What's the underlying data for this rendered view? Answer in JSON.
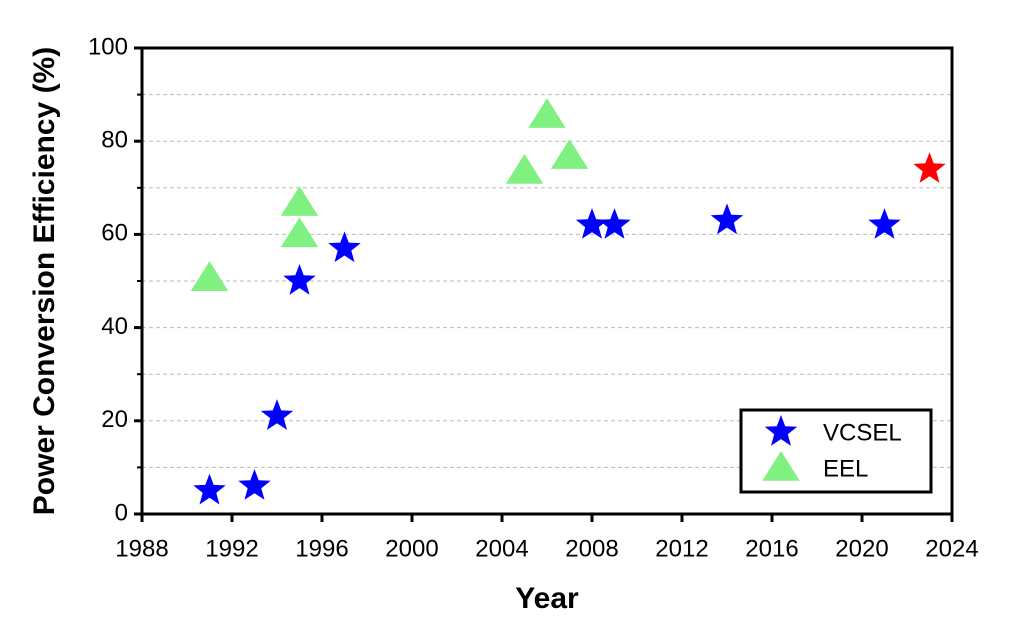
{
  "chart_data": {
    "type": "scatter",
    "xlabel": "Year",
    "ylabel": "Power Conversion Efficiency (%)",
    "xlim": [
      1988,
      2024
    ],
    "xticks": [
      1988,
      1992,
      1996,
      2000,
      2004,
      2008,
      2012,
      2016,
      2020,
      2024
    ],
    "ylim": [
      0,
      100
    ],
    "yticks": [
      0,
      20,
      40,
      60,
      80,
      100
    ],
    "minor_yticks": [
      10,
      30,
      50,
      70,
      90
    ],
    "grid": true,
    "legend": "lower right",
    "series": [
      {
        "name": "VCSEL",
        "color": "#0000ff",
        "marker": "star",
        "x": [
          1991,
          1993,
          1994,
          1995,
          1997,
          2008,
          2009,
          2014,
          2021
        ],
        "values": [
          5,
          6,
          21,
          50,
          57,
          62,
          62,
          63,
          62
        ]
      },
      {
        "name": "EEL",
        "color": "#80f080",
        "marker": "triangle",
        "x": [
          1991,
          1995,
          1995,
          2005,
          2006,
          2007
        ],
        "values": [
          50.6,
          66.7,
          60,
          73.6,
          85.6,
          76.8
        ]
      },
      {
        "color": "#ff0000",
        "marker": "star",
        "x": [
          2023
        ],
        "values": [
          74
        ]
      }
    ]
  }
}
